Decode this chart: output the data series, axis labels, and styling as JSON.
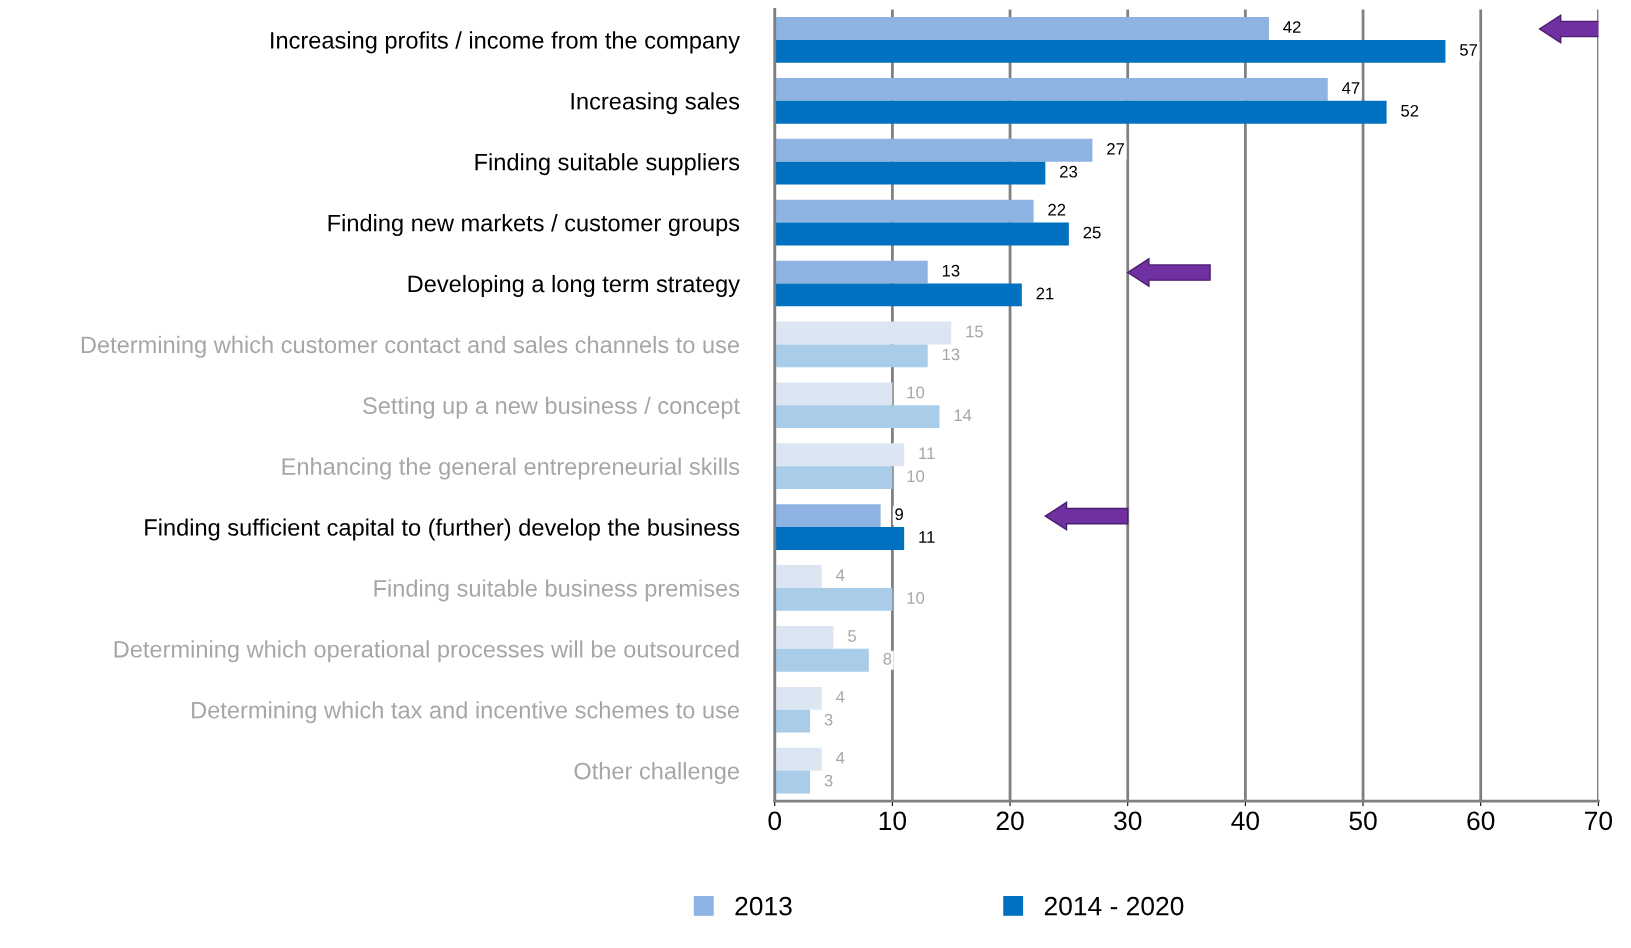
{
  "chart_data": {
    "type": "bar",
    "orientation": "horizontal",
    "categories": [
      "Increasing profits / income from the company",
      "Increasing sales",
      "Finding suitable suppliers",
      "Finding new markets / customer groups",
      "Developing a long term strategy",
      "Determining which customer contact and sales channels to use",
      "Setting up a new business / concept",
      "Enhancing the general entrepreneurial skills",
      "Finding sufficient capital to (further) develop the business",
      "Finding suitable business premises",
      "Determining which operational processes will be outsourced",
      "Determining which tax and incentive schemes to use",
      "Other challenge"
    ],
    "series": [
      {
        "name": "2013",
        "color": "#8db3e2",
        "colors": [
          "#8db3e2",
          "#8db3e2",
          "#8db3e2",
          "#8db3e2",
          "#8db3e2",
          "#dce6f2",
          "#dce6f2",
          "#dce6f2",
          "#8db3e2",
          "#dce6f2",
          "#dce6f2",
          "#dce6f2",
          "#dce6f2"
        ],
        "values": [
          42,
          47,
          27,
          22,
          13,
          15,
          10,
          11,
          9,
          4,
          5,
          4,
          4
        ]
      },
      {
        "name": "2014 - 2020",
        "color": "#0070c0",
        "colors": [
          "#0070c0",
          "#0070c0",
          "#0070c0",
          "#0070c0",
          "#0070c0",
          "#a9cce8",
          "#a9cce8",
          "#a9cce8",
          "#0070c0",
          "#a9cce8",
          "#a9cce8",
          "#a9cce8",
          "#a9cce8"
        ],
        "values": [
          57,
          52,
          23,
          25,
          21,
          13,
          14,
          10,
          11,
          10,
          8,
          3,
          3
        ]
      }
    ],
    "xlim": [
      0,
      70
    ],
    "xticks": [
      0,
      10,
      20,
      30,
      40,
      50,
      60,
      70
    ],
    "grid": "x",
    "legend": "bottom",
    "data_labels": true
  }
}
